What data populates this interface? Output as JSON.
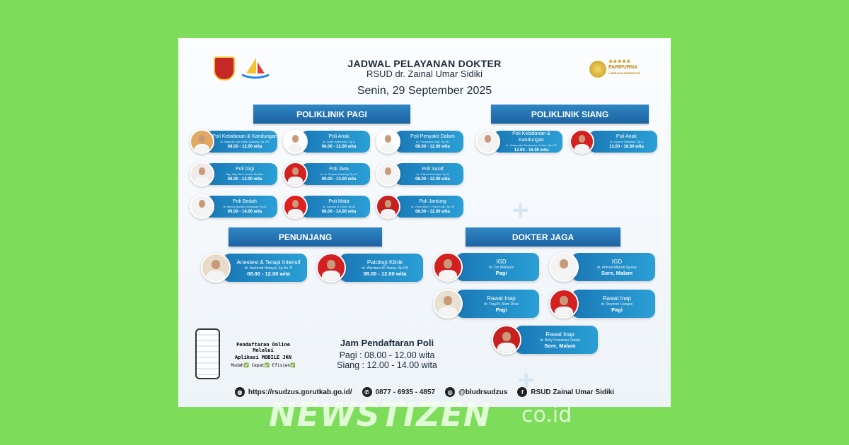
{
  "header": {
    "title": "JADWAL PELAYANAN DOKTER",
    "hospital": "RSUD dr. Zainal Umar Sidiki",
    "date": "Senin, 29 September 2025",
    "accreditation": "PARIPURNA",
    "accreditation_sub": "LEMBAGA AKREDITASI"
  },
  "sections": {
    "pagi": "POLIKLINIK PAGI",
    "siang": "POLIKLINIK SIANG",
    "penunjang": "PENUNJANG",
    "jaga": "DOKTER JAGA"
  },
  "pagi": [
    {
      "name": "Poli Kebidanan & Kandungan",
      "doctor": "dr. Najmiah Nur Indah Djakaria, Sp.OG",
      "hours": "08.00 - 12.00 wita",
      "photo_bg": "#e0a860"
    },
    {
      "name": "Poli Anak",
      "doctor": "dr. Zulfito Marendra, Sp.A",
      "hours": "08.00 - 12.00 wita",
      "photo_bg": "#ffffff"
    },
    {
      "name": "Poli Penyakit Dalam",
      "doctor": "dr. Ferdiyanto Dayi, Sp.PD",
      "hours": "08.00 - 12.00 wita",
      "photo_bg": "#ffffff"
    },
    {
      "name": "Poli Gigi",
      "doctor": "drg. Kiky Dedi Lestari Ibrahim",
      "hours": "08.00 - 12.00 wita",
      "photo_bg": "#f1eaea"
    },
    {
      "name": "Poli Jiwa",
      "doctor": "dr. M. Sofyan Almahdy, Sp.KJ",
      "hours": "09.00 - 13.00 wita",
      "photo_bg": "#d32020"
    },
    {
      "name": "Poli Saraf",
      "doctor": "dr. Yulinda Mustapa, Sp.N",
      "hours": "08.00 - 12.00 wita",
      "photo_bg": "#f3f3f3"
    },
    {
      "name": "Poli Bedah",
      "doctor": "dr. Benny Nanda Kurniawan, Sp.B",
      "hours": "09.00 - 14.00 wita",
      "photo_bg": "#f3f3f3"
    },
    {
      "name": "Poli Mata",
      "doctor": "dr. Samuel B. Einor, Sp.M",
      "hours": "08.00 - 14.00 wita",
      "photo_bg": "#e02020"
    },
    {
      "name": "Poli Jantung",
      "doctor": "dr. Victor Billy F. Putra Untu, Sp.JP",
      "hours": "08.00 - 12.00 wita",
      "photo_bg": "#c62020"
    }
  ],
  "siang": [
    {
      "name": "Poli Kebidanan & Kandungan",
      "doctor": "dr. Zulkarnain Tambunan, M.Kes, Sp.OG",
      "hours": "12.00 - 16.00 wita",
      "photo_bg": "#f3f3f3"
    },
    {
      "name": "Poli Anak",
      "doctor": "dr. Aryanto Setiawan, Sp.A",
      "hours": "13.00 - 16.00 wita",
      "photo_bg": "#d32020"
    }
  ],
  "penunjang": [
    {
      "name": "Anestesi & Terapi Intensif",
      "doctor": "dr. Bachmat Hidayat, Sp.An-TI",
      "hours": "08.00 - 12.00 wita",
      "photo_bg": "#e8dcc8"
    },
    {
      "name": "Patologi Klinik",
      "doctor": "dr. Wardana M. Harun, Sp.PK",
      "hours": "08.00 - 12.00 wita",
      "photo_bg": "#d32020"
    }
  ],
  "jaga": [
    {
      "name": "IGD",
      "doctor": "dr. Ozi Wahyuni",
      "hours": "Pagi",
      "photo_bg": "#d32020"
    },
    {
      "name": "IGD",
      "doctor": "dr. Ahmad Affandi Syukur",
      "hours": "Sore, Malam",
      "photo_bg": "#f3f3f3"
    },
    {
      "name": "Rawat Inap",
      "doctor": "dr. Triaji B. Alam Divai",
      "hours": "Pagi",
      "photo_bg": "#e8e0d0"
    },
    {
      "name": "Rawat Inap",
      "doctor": "dr. Reymon Liangan",
      "hours": "Pagi",
      "photo_bg": "#d32020"
    },
    {
      "name": "Rawat Inap",
      "doctor": "dr. Belly Fransisca Tokala",
      "hours": "Sore, Malam",
      "photo_bg": "#c62020"
    }
  ],
  "online": {
    "line1": "Pendaftaran Online Melalui",
    "line2": "Aplikasi MOBILE JKN",
    "tags": "Mudah✅ Cepat✅ Efisien✅"
  },
  "registration": {
    "title": "Jam Pendaftaran Poli",
    "pagi": "Pagi : 08.00 - 12.00 wita",
    "siang": "Siang : 12.00 - 14.00 wita"
  },
  "footer": {
    "website": "https://rsudzus.gorutkab.go.id/",
    "phone": "0877 - 6935 - 4857",
    "instagram": "@bludrsudzus",
    "facebook": "RSUD Zainal Umar Sidiki"
  },
  "watermark": {
    "brand": "NEWSTIZEN",
    "suffix": "co.id"
  }
}
